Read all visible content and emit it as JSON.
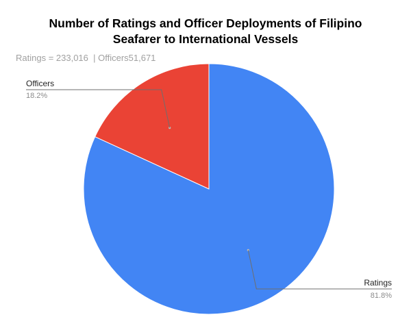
{
  "chart_data": {
    "type": "pie",
    "title_lines": [
      "Number of Ratings and Officer Deployments of Filipino",
      "Seafarer to International Vessels"
    ],
    "subtitle": "Ratings = 233,016  | Officers51,671",
    "slices": [
      {
        "name": "Ratings",
        "value": 233016,
        "percent_label": "81.8%",
        "color": "#4285f4"
      },
      {
        "name": "Officers",
        "value": 51671,
        "percent_label": "18.2%",
        "color": "#ea4335"
      }
    ],
    "start_angle_deg": 0,
    "direction": "clockwise",
    "legend": "none",
    "labels": "outside-with-leader-lines"
  }
}
